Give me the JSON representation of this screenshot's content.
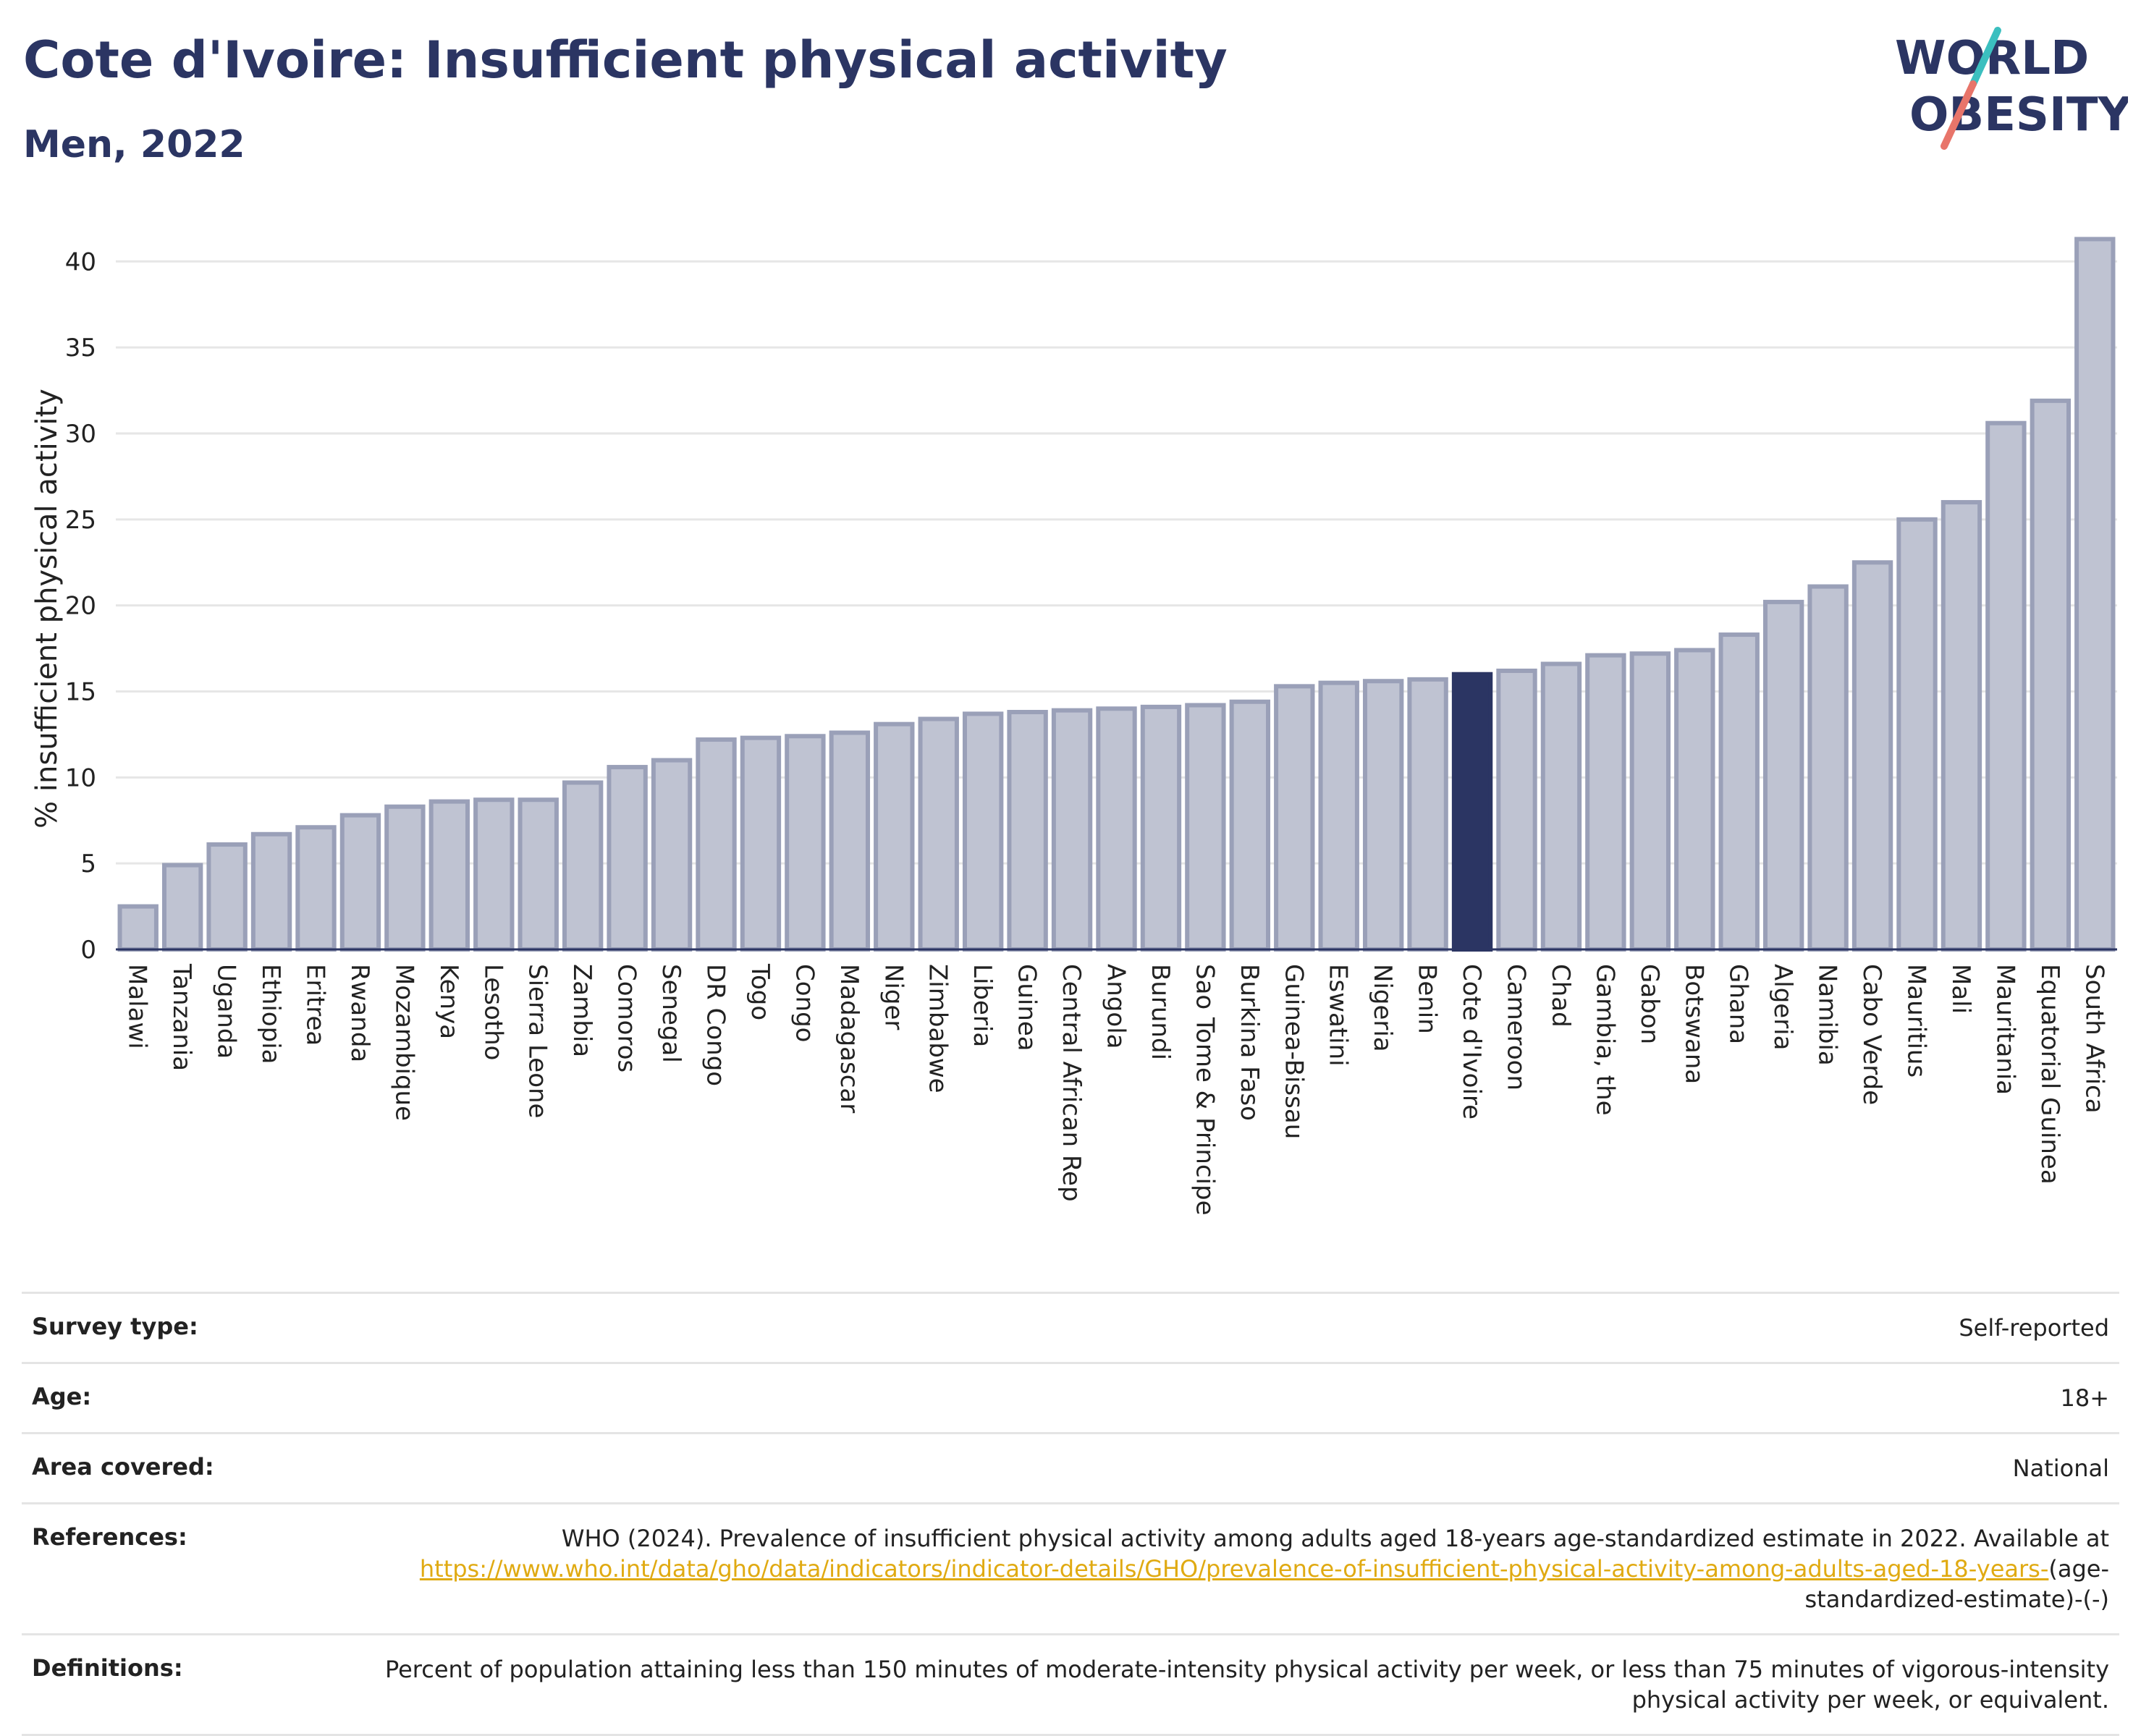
{
  "header": {
    "title": "Cote d'Ivoire: Insufficient physical activity",
    "subtitle": "Men, 2022",
    "logo_line1": "WORLD",
    "logo_line2": "OBESITY"
  },
  "colors": {
    "title": "#2b3563",
    "bar_fill": "#bfc3d2",
    "bar_edge": "#9aa0b8",
    "highlight": "#2b3563",
    "grid": "#e6e6e6",
    "link": "#e0aa12",
    "logo_teal": "#3bbfbf",
    "logo_coral": "#e8756a"
  },
  "chart_data": {
    "type": "bar",
    "ylabel": "% insufficient physical activity",
    "xlabel": "",
    "ylim": [
      0,
      43
    ],
    "yticks": [
      0,
      5,
      10,
      15,
      20,
      25,
      30,
      35,
      40
    ],
    "grid": true,
    "highlight": "Cote d'Ivoire",
    "categories": [
      "Malawi",
      "Tanzania",
      "Uganda",
      "Ethiopia",
      "Eritrea",
      "Rwanda",
      "Mozambique",
      "Kenya",
      "Lesotho",
      "Sierra Leone",
      "Zambia",
      "Comoros",
      "Senegal",
      "DR Congo",
      "Togo",
      "Congo",
      "Madagascar",
      "Niger",
      "Zimbabwe",
      "Liberia",
      "Guinea",
      "Central African Rep",
      "Angola",
      "Burundi",
      "Sao Tome & Principe",
      "Burkina Faso",
      "Guinea-Bissau",
      "Eswatini",
      "Nigeria",
      "Benin",
      "Cote d'Ivoire",
      "Cameroon",
      "Chad",
      "Gambia, the",
      "Gabon",
      "Botswana",
      "Ghana",
      "Algeria",
      "Namibia",
      "Cabo Verde",
      "Mauritius",
      "Mali",
      "Mauritania",
      "Equatorial Guinea",
      "South Africa"
    ],
    "values": [
      2.5,
      4.9,
      6.1,
      6.7,
      7.1,
      7.8,
      8.3,
      8.6,
      8.7,
      8.7,
      9.7,
      10.6,
      11.0,
      12.2,
      12.3,
      12.4,
      12.6,
      13.1,
      13.4,
      13.7,
      13.8,
      13.9,
      14.0,
      14.1,
      14.2,
      14.4,
      15.3,
      15.5,
      15.6,
      15.7,
      16.0,
      16.2,
      16.6,
      17.1,
      17.2,
      17.4,
      18.3,
      20.2,
      21.1,
      22.5,
      25.0,
      26.0,
      30.6,
      31.9,
      41.3
    ]
  },
  "meta": {
    "rows": [
      {
        "key": "Survey type:",
        "value": "Self-reported"
      },
      {
        "key": "Age:",
        "value": "18+"
      },
      {
        "key": "Area covered:",
        "value": "National"
      }
    ],
    "references_key": "References:",
    "references_text": "WHO (2024). Prevalence of insufficient physical activity among adults aged 18-years age-standardized estimate in 2022. Available at",
    "references_link": "https://www.who.int/data/gho/data/indicators/indicator-details/GHO/prevalence-of-insufficient-physical-activity-among-adults-aged-18-years-",
    "references_tail": "(age-standardized-estimate)-(-)",
    "definitions_key": "Definitions:",
    "definitions_text": "Percent of population attaining less than 150 minutes of moderate-intensity physical activity per week, or less than 75 minutes of vigorous-intensity physical activity per week, or equivalent."
  }
}
